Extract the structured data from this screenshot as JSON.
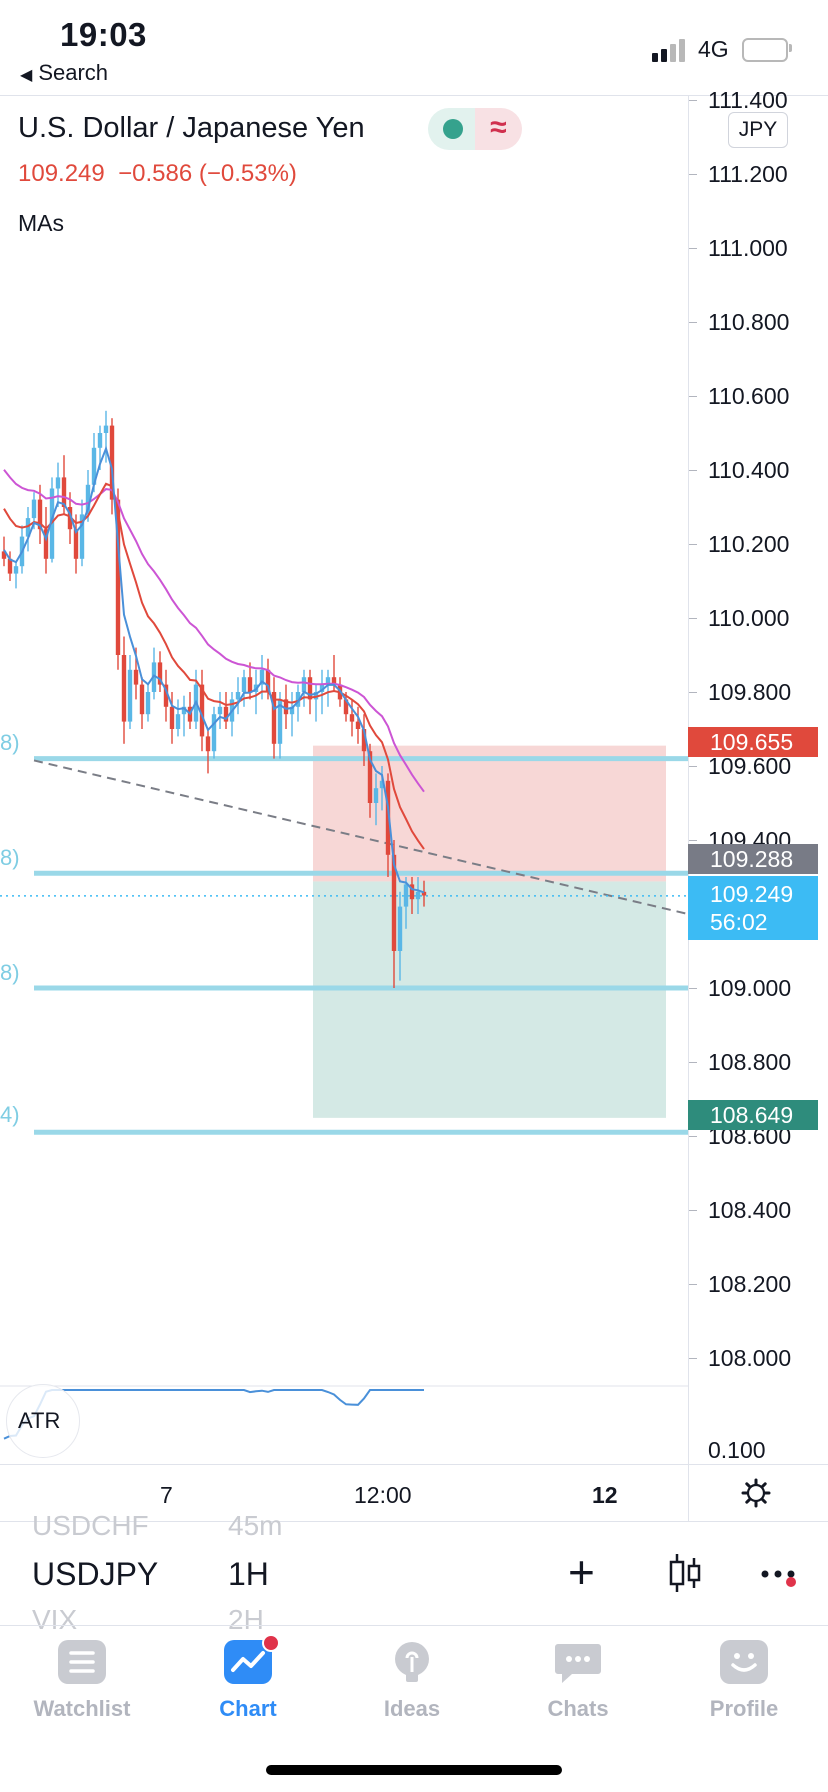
{
  "status_bar": {
    "time": "19:03",
    "back_label": "Search",
    "network": "4G"
  },
  "legend": {
    "title": "U.S. Dollar / Japanese Yen",
    "last_price": "109.249",
    "change": "−0.586",
    "change_pct": "(−0.53%)",
    "indicator_label": "MAs",
    "currency_badge": "JPY"
  },
  "price_axis": {
    "ticks": [
      "111.400",
      "111.200",
      "111.000",
      "110.800",
      "110.600",
      "110.400",
      "110.200",
      "110.000",
      "109.800",
      "109.600",
      "109.400",
      "109.000",
      "108.800",
      "108.600",
      "108.400",
      "108.200",
      "108.000"
    ]
  },
  "price_labels": {
    "stop": "109.655",
    "entry": "109.288",
    "last": "109.249",
    "countdown": "56:02",
    "target": "108.649"
  },
  "left_labels": [
    "8)",
    "8)",
    "8)",
    "4)"
  ],
  "atr": {
    "label": "ATR",
    "value": "0.100"
  },
  "time_axis": {
    "labels": [
      "7",
      "12:00",
      "12"
    ]
  },
  "symbol_picker": {
    "symbol_prev": "USDCHF",
    "interval_prev": "45m",
    "symbol": "USDJPY",
    "interval": "1H",
    "symbol_next": "VIX",
    "interval_next": "2H"
  },
  "tabs": [
    {
      "label": "Watchlist",
      "icon": "list-icon",
      "active": false
    },
    {
      "label": "Chart",
      "icon": "chart-icon",
      "active": true
    },
    {
      "label": "Ideas",
      "icon": "bulb-icon",
      "active": false
    },
    {
      "label": "Chats",
      "icon": "chat-icon",
      "active": false
    },
    {
      "label": "Profile",
      "icon": "smile-icon",
      "active": false
    }
  ],
  "colors": {
    "up": "#5ab7e6",
    "down": "#e0493c",
    "ma_fast": "#4a90d9",
    "ma_mid": "#e0493c",
    "ma_slow": "#cc55d4",
    "accent": "#2962ff",
    "stop_zone": "#f6d0cf",
    "target_zone": "#cfe7e2",
    "level_line": "#9ad8e8"
  },
  "chart_data": {
    "type": "candlestick",
    "symbol": "USDJPY",
    "interval": "1H",
    "x_ticks": [
      "7",
      "12:00",
      "12"
    ],
    "y_ticks": [
      111.4,
      111.2,
      111.0,
      110.8,
      110.6,
      110.4,
      110.2,
      110.0,
      109.8,
      109.6,
      109.4,
      109.0,
      108.8,
      108.6,
      108.4,
      108.2,
      108.0
    ],
    "ylim": [
      107.9,
      111.45
    ],
    "grid": false,
    "horizontal_levels": [
      109.62,
      109.31,
      109.0,
      108.61
    ],
    "position": {
      "stop": 109.655,
      "entry": 109.288,
      "target": 108.649
    },
    "last_price": 109.249,
    "ohlc": [
      [
        110.18,
        110.22,
        110.14,
        110.16
      ],
      [
        110.16,
        110.18,
        110.1,
        110.12
      ],
      [
        110.12,
        110.15,
        110.08,
        110.14
      ],
      [
        110.14,
        110.25,
        110.12,
        110.22
      ],
      [
        110.22,
        110.3,
        110.18,
        110.27
      ],
      [
        110.27,
        110.34,
        110.24,
        110.32
      ],
      [
        110.32,
        110.36,
        110.2,
        110.24
      ],
      [
        110.24,
        110.3,
        110.12,
        110.16
      ],
      [
        110.16,
        110.38,
        110.15,
        110.35
      ],
      [
        110.35,
        110.42,
        110.3,
        110.38
      ],
      [
        110.38,
        110.44,
        110.28,
        110.3
      ],
      [
        110.3,
        110.34,
        110.2,
        110.24
      ],
      [
        110.24,
        110.28,
        110.12,
        110.16
      ],
      [
        110.16,
        110.32,
        110.14,
        110.28
      ],
      [
        110.28,
        110.4,
        110.26,
        110.36
      ],
      [
        110.36,
        110.5,
        110.34,
        110.46
      ],
      [
        110.46,
        110.52,
        110.4,
        110.5
      ],
      [
        110.5,
        110.56,
        110.42,
        110.52
      ],
      [
        110.52,
        110.54,
        110.28,
        110.32
      ],
      [
        110.32,
        110.35,
        109.86,
        109.9
      ],
      [
        109.9,
        109.95,
        109.66,
        109.72
      ],
      [
        109.72,
        109.9,
        109.7,
        109.86
      ],
      [
        109.86,
        109.92,
        109.78,
        109.82
      ],
      [
        109.82,
        109.84,
        109.7,
        109.74
      ],
      [
        109.74,
        109.82,
        109.72,
        109.8
      ],
      [
        109.8,
        109.92,
        109.78,
        109.88
      ],
      [
        109.88,
        109.91,
        109.8,
        109.82
      ],
      [
        109.82,
        109.86,
        109.72,
        109.76
      ],
      [
        109.76,
        109.8,
        109.66,
        109.7
      ],
      [
        109.7,
        109.78,
        109.68,
        109.74
      ],
      [
        109.74,
        109.79,
        109.68,
        109.76
      ],
      [
        109.76,
        109.8,
        109.7,
        109.72
      ],
      [
        109.72,
        109.86,
        109.7,
        109.82
      ],
      [
        109.82,
        109.86,
        109.64,
        109.68
      ],
      [
        109.68,
        109.7,
        109.58,
        109.64
      ],
      [
        109.64,
        109.76,
        109.62,
        109.74
      ],
      [
        109.74,
        109.8,
        109.7,
        109.76
      ],
      [
        109.76,
        109.8,
        109.7,
        109.72
      ],
      [
        109.72,
        109.8,
        109.68,
        109.78
      ],
      [
        109.78,
        109.84,
        109.74,
        109.8
      ],
      [
        109.8,
        109.86,
        109.76,
        109.84
      ],
      [
        109.84,
        109.88,
        109.78,
        109.8
      ],
      [
        109.8,
        109.86,
        109.74,
        109.82
      ],
      [
        109.82,
        109.9,
        109.78,
        109.86
      ],
      [
        109.86,
        109.89,
        109.78,
        109.8
      ],
      [
        109.8,
        109.84,
        109.62,
        109.66
      ],
      [
        109.66,
        109.8,
        109.62,
        109.78
      ],
      [
        109.78,
        109.82,
        109.7,
        109.74
      ],
      [
        109.74,
        109.8,
        109.68,
        109.76
      ],
      [
        109.76,
        109.82,
        109.72,
        109.8
      ],
      [
        109.8,
        109.86,
        109.76,
        109.84
      ],
      [
        109.84,
        109.86,
        109.74,
        109.78
      ],
      [
        109.78,
        109.82,
        109.72,
        109.8
      ],
      [
        109.8,
        109.86,
        109.74,
        109.82
      ],
      [
        109.82,
        109.86,
        109.76,
        109.84
      ],
      [
        109.84,
        109.9,
        109.8,
        109.82
      ],
      [
        109.82,
        109.84,
        109.76,
        109.78
      ],
      [
        109.78,
        109.8,
        109.72,
        109.74
      ],
      [
        109.74,
        109.78,
        109.68,
        109.72
      ],
      [
        109.72,
        109.76,
        109.66,
        109.7
      ],
      [
        109.7,
        109.74,
        109.6,
        109.64
      ],
      [
        109.64,
        109.66,
        109.46,
        109.5
      ],
      [
        109.5,
        109.58,
        109.44,
        109.54
      ],
      [
        109.54,
        109.6,
        109.48,
        109.56
      ],
      [
        109.56,
        109.58,
        109.3,
        109.36
      ],
      [
        109.36,
        109.4,
        109.0,
        109.1
      ],
      [
        109.1,
        109.26,
        109.02,
        109.22
      ],
      [
        109.22,
        109.3,
        109.16,
        109.28
      ],
      [
        109.28,
        109.3,
        109.2,
        109.24
      ],
      [
        109.24,
        109.3,
        109.2,
        109.26
      ],
      [
        109.26,
        109.29,
        109.22,
        109.25
      ]
    ],
    "series": [
      {
        "values": []
      },
      {
        "values": []
      },
      {
        "values": []
      }
    ]
  }
}
